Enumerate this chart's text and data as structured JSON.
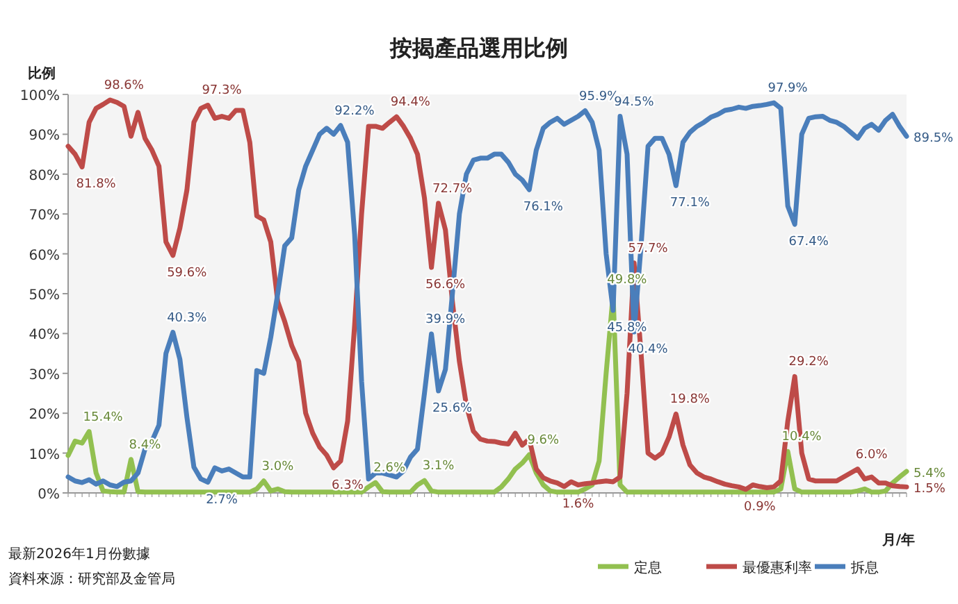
{
  "chart_data": {
    "type": "line",
    "title": "按揭產品選用比例",
    "xlabel": "月/年",
    "ylabel": "比例",
    "categories": [
      null,
      null,
      null,
      null,
      null,
      null,
      null,
      null,
      null,
      null,
      null,
      null,
      null,
      null,
      null,
      null,
      null,
      null,
      null,
      null,
      null,
      null,
      null,
      null,
      null,
      null,
      null,
      null,
      null,
      null,
      null,
      null,
      null,
      null,
      null,
      null,
      null,
      null,
      null,
      null,
      null,
      null,
      null,
      null,
      null,
      null,
      null,
      null,
      null,
      null,
      null,
      null,
      null,
      null,
      null,
      null,
      null,
      null,
      null,
      null,
      null,
      null,
      null,
      null,
      null,
      null,
      null,
      null,
      null,
      null,
      null,
      null,
      null,
      null,
      null,
      null,
      null,
      null,
      null,
      null,
      null,
      null,
      null,
      null,
      null,
      null,
      null,
      null,
      null,
      null,
      null,
      null,
      null,
      null,
      null,
      null,
      null,
      null,
      null,
      null,
      null,
      null,
      null,
      null,
      null,
      null,
      null,
      null,
      null,
      null,
      null,
      null,
      null,
      null,
      null,
      null,
      null,
      null,
      null,
      null,
      null
    ],
    "series": [
      {
        "name": "定息",
        "color": "#92c050",
        "values": [
          9.4,
          13,
          12.5,
          15.4,
          5,
          0.5,
          0.3,
          0.2,
          0.2,
          8.4,
          0.3,
          0.2,
          0.2,
          0.2,
          0.2,
          0.2,
          0.2,
          0.2,
          0.2,
          0.2,
          0.2,
          0.2,
          0.2,
          0.2,
          0.2,
          0.2,
          0.2,
          1,
          3.0,
          0.5,
          1,
          0.3,
          0.2,
          0.2,
          0.2,
          0.2,
          0.2,
          0.2,
          0.2,
          0.2,
          0.2,
          0.2,
          0.2,
          1.5,
          2.6,
          0.3,
          0.2,
          0.2,
          0.2,
          0.2,
          2,
          3.1,
          0.5,
          0.2,
          0.2,
          0.2,
          0.2,
          0.2,
          0.2,
          0.2,
          0.2,
          0.2,
          1.5,
          3.5,
          6,
          7.5,
          9.6,
          5,
          2,
          0.5,
          0.2,
          0.2,
          0.2,
          0.2,
          1,
          2,
          8,
          30,
          49.8,
          2,
          0.2,
          0.2,
          0.2,
          0.2,
          0.2,
          0.2,
          0.2,
          0.2,
          0.2,
          0.2,
          0.2,
          0.2,
          0.2,
          0.2,
          0.2,
          0.2,
          0.2,
          0.2,
          0.2,
          0.2,
          0.2,
          0.2,
          1,
          10.4,
          1,
          0.2,
          0.2,
          0.2,
          0.2,
          0.2,
          0.2,
          0.2,
          0.2,
          0.5,
          1,
          0.2,
          0.2,
          0.5,
          2.5,
          4,
          5.4
        ],
        "value_labels": [
          null,
          null,
          null,
          "15.4%",
          null,
          null,
          null,
          null,
          null,
          "8.4%",
          null,
          null,
          null,
          null,
          null,
          null,
          null,
          null,
          null,
          null,
          null,
          null,
          null,
          null,
          null,
          null,
          null,
          null,
          "3.0%",
          null,
          null,
          null,
          null,
          null,
          null,
          null,
          null,
          null,
          null,
          null,
          null,
          null,
          null,
          null,
          "2.6%",
          null,
          null,
          null,
          null,
          null,
          null,
          "3.1%",
          null,
          null,
          null,
          null,
          null,
          null,
          null,
          null,
          null,
          null,
          null,
          null,
          null,
          null,
          "9.6%",
          null,
          null,
          null,
          null,
          null,
          null,
          null,
          null,
          null,
          null,
          null,
          "49.8%",
          null,
          null,
          null,
          null,
          null,
          null,
          null,
          null,
          null,
          null,
          null,
          null,
          null,
          null,
          null,
          null,
          null,
          null,
          null,
          null,
          null,
          null,
          null,
          null,
          "10.4%",
          null,
          null,
          null,
          null,
          null,
          null,
          null,
          null,
          null,
          null,
          null,
          null,
          null,
          null,
          null,
          null,
          "5.4%"
        ]
      },
      {
        "name": "最優惠利率",
        "color": "#be4b48",
        "values": [
          87,
          85,
          81.8,
          93,
          96.5,
          97.5,
          98.6,
          98,
          97,
          89.5,
          95.5,
          89,
          86,
          82,
          63,
          59.6,
          66.5,
          76,
          93,
          96.5,
          97.3,
          94,
          94.5,
          94,
          96,
          96,
          88,
          69.5,
          68.5,
          63,
          48,
          43,
          37,
          33,
          20,
          15,
          11.5,
          9.5,
          6.3,
          8,
          18,
          42,
          70,
          92,
          92,
          91.5,
          93,
          94.4,
          92,
          89,
          85,
          74,
          56.6,
          72.7,
          66,
          48,
          33,
          22,
          15.5,
          13.5,
          13,
          12.9,
          12.5,
          12.3,
          15,
          12,
          13.5,
          6,
          3.8,
          3,
          2.5,
          1.6,
          2.8,
          2,
          2.3,
          2.5,
          2.8,
          3,
          2.8,
          4,
          25,
          57.7,
          35,
          10,
          8.7,
          10,
          14,
          19.8,
          12,
          7,
          5,
          4,
          3.5,
          2.8,
          2.2,
          1.8,
          1.5,
          0.9,
          2,
          1.6,
          1.3,
          1.5,
          3,
          18,
          29.2,
          10,
          3.5,
          3,
          3,
          3,
          3,
          4,
          5,
          6.0,
          3.5,
          4,
          2.5,
          2.5,
          1.8,
          1.6,
          1.5
        ],
        "value_labels": [
          null,
          null,
          "81.8%",
          null,
          null,
          null,
          "98.6%",
          null,
          null,
          null,
          null,
          null,
          null,
          null,
          null,
          "59.6%",
          null,
          null,
          null,
          null,
          "97.3%",
          null,
          null,
          null,
          null,
          null,
          null,
          null,
          null,
          null,
          null,
          null,
          null,
          null,
          null,
          null,
          null,
          null,
          "6.3%",
          null,
          null,
          null,
          null,
          null,
          null,
          null,
          null,
          "94.4%",
          null,
          null,
          null,
          null,
          "56.6%",
          "72.7%",
          null,
          null,
          null,
          null,
          null,
          null,
          null,
          null,
          null,
          null,
          null,
          null,
          null,
          null,
          null,
          null,
          null,
          "1.6%",
          null,
          null,
          null,
          null,
          null,
          null,
          null,
          null,
          null,
          "57.7%",
          null,
          null,
          null,
          null,
          null,
          "19.8%",
          null,
          null,
          null,
          null,
          null,
          null,
          null,
          null,
          null,
          "0.9%",
          null,
          null,
          null,
          null,
          null,
          null,
          "29.2%",
          null,
          null,
          null,
          null,
          null,
          null,
          null,
          null,
          "6.0%",
          null,
          null,
          null,
          null,
          null,
          null,
          "1.5%"
        ]
      },
      {
        "name": "拆息",
        "color": "#4a7ebb",
        "values": [
          4,
          3,
          2.6,
          3.3,
          2.2,
          3,
          2,
          1.6,
          2.7,
          3,
          5,
          11,
          13,
          17,
          35,
          40.3,
          33.5,
          19,
          6.5,
          3.5,
          2.7,
          6.3,
          5.5,
          6,
          5,
          4,
          4,
          30.7,
          30,
          39,
          50,
          62,
          64,
          76,
          82,
          86,
          90,
          91.5,
          90,
          92.2,
          88,
          65,
          28,
          3.5,
          5,
          5,
          4.5,
          4,
          5.5,
          9,
          11,
          25,
          39.9,
          25.6,
          31,
          50,
          70,
          80,
          83.5,
          84,
          84,
          85,
          85,
          83,
          80,
          78.5,
          76.1,
          86,
          91.5,
          93,
          94,
          92.5,
          93.5,
          94.5,
          95.9,
          93,
          86,
          60,
          45.8,
          94.5,
          85,
          40.4,
          62,
          87,
          89,
          89,
          85,
          77.1,
          88,
          90.5,
          92,
          93,
          94.3,
          95,
          96,
          96.3,
          96.8,
          96.5,
          97,
          97.2,
          97.5,
          97.9,
          96.5,
          72,
          67.4,
          90,
          94,
          94.4,
          94.5,
          93.5,
          93,
          92,
          90.5,
          89,
          91.5,
          92.5,
          91,
          93.5,
          95,
          92,
          89.5
        ],
        "value_labels": [
          null,
          null,
          null,
          null,
          null,
          null,
          null,
          null,
          null,
          null,
          null,
          null,
          null,
          null,
          null,
          "40.3%",
          null,
          null,
          null,
          null,
          "2.7%",
          null,
          null,
          null,
          null,
          null,
          null,
          null,
          null,
          null,
          null,
          null,
          null,
          null,
          null,
          null,
          null,
          null,
          null,
          "92.2%",
          null,
          null,
          null,
          null,
          null,
          null,
          null,
          null,
          null,
          null,
          null,
          null,
          "39.9%",
          "25.6%",
          null,
          null,
          null,
          null,
          null,
          null,
          null,
          null,
          null,
          null,
          null,
          null,
          "76.1%",
          null,
          null,
          null,
          null,
          null,
          null,
          null,
          "95.9%",
          null,
          null,
          null,
          "45.8%",
          "94.5%",
          null,
          "40.4%",
          null,
          null,
          null,
          null,
          null,
          "77.1%",
          null,
          null,
          null,
          null,
          null,
          null,
          null,
          null,
          null,
          null,
          null,
          null,
          null,
          "97.9%",
          null,
          null,
          "67.4%",
          null,
          null,
          null,
          null,
          null,
          null,
          null,
          null,
          null,
          null,
          null,
          null,
          null,
          null,
          null,
          "89.5%"
        ]
      }
    ],
    "ylim": [
      0,
      100
    ],
    "yticks": [
      {
        "value": 0,
        "label": "0%"
      },
      {
        "value": 10,
        "label": "10%"
      },
      {
        "value": 20,
        "label": "20%"
      },
      {
        "value": 30,
        "label": "30%"
      },
      {
        "value": 40,
        "label": "40%"
      },
      {
        "value": 50,
        "label": "50%"
      },
      {
        "value": 60,
        "label": "60%"
      },
      {
        "value": 70,
        "label": "70%"
      },
      {
        "value": 80,
        "label": "80%"
      },
      {
        "value": 90,
        "label": "90%"
      },
      {
        "value": 100,
        "label": "100%"
      }
    ],
    "legend": "bottom right",
    "annotations": [
      "最新2026年1月份數據",
      "資料來源：研究部及金管局"
    ]
  }
}
